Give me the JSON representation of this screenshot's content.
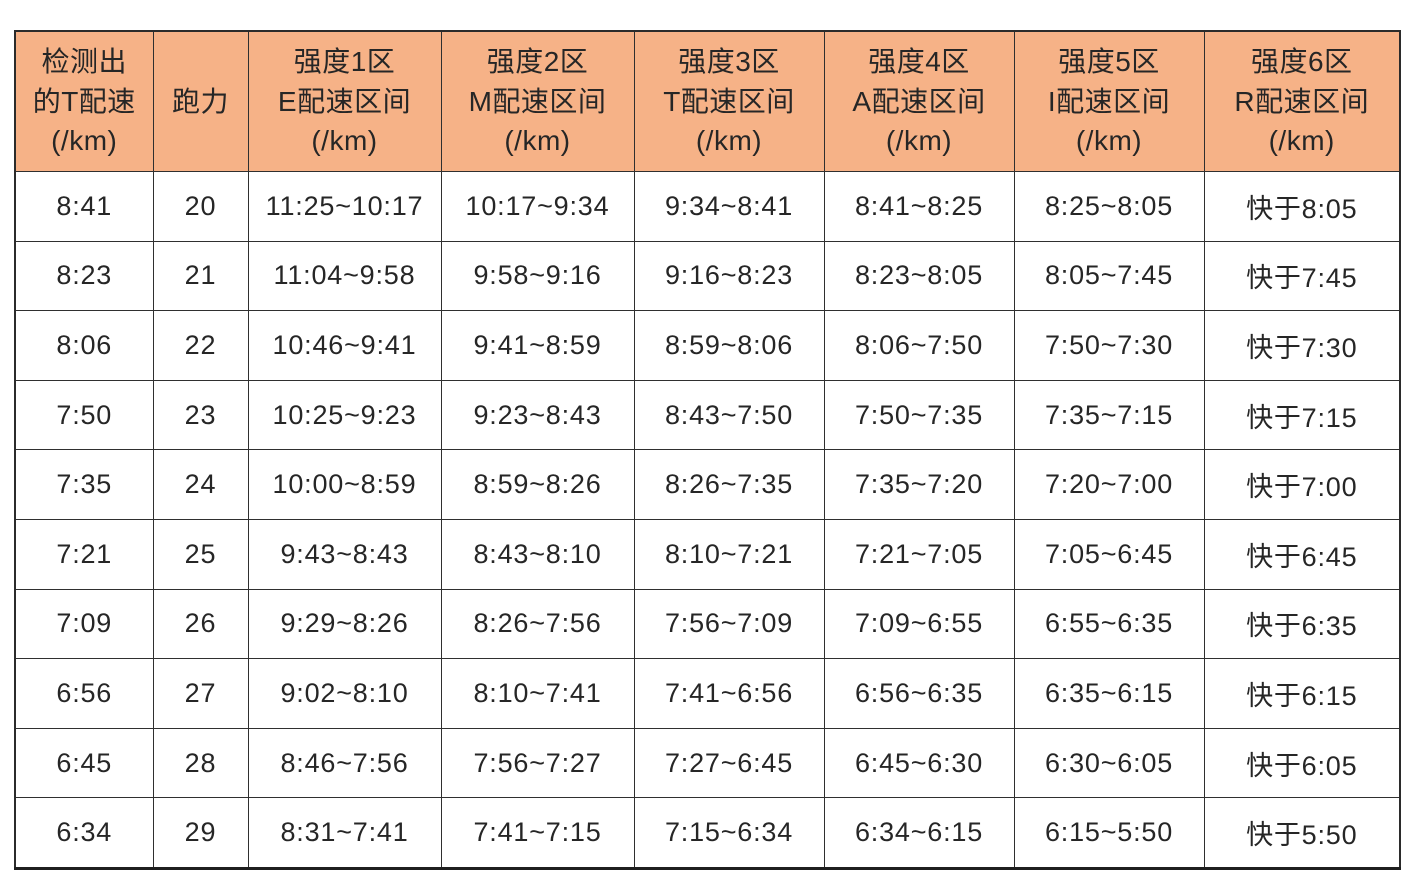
{
  "page": {
    "background_color": "#ffffff"
  },
  "table": {
    "header_bg_color": "#F6B287",
    "border_color": "#2f2f2f",
    "text_color": "#262626",
    "columns": [
      {
        "id": "detected-t-pace",
        "lines": [
          "检测出",
          "的T配速",
          "(/km)"
        ]
      },
      {
        "id": "run-ability",
        "lines": [
          "跑力"
        ]
      },
      {
        "id": "zone1-e-pace",
        "lines": [
          "强度1区",
          "E配速区间",
          "(/km)"
        ]
      },
      {
        "id": "zone2-m-pace",
        "lines": [
          "强度2区",
          "M配速区间",
          "(/km)"
        ]
      },
      {
        "id": "zone3-t-pace",
        "lines": [
          "强度3区",
          "T配速区间",
          "(/km)"
        ]
      },
      {
        "id": "zone4-a-pace",
        "lines": [
          "强度4区",
          "A配速区间",
          "(/km)"
        ]
      },
      {
        "id": "zone5-i-pace",
        "lines": [
          "强度5区",
          "I配速区间",
          "(/km)"
        ]
      },
      {
        "id": "zone6-r-pace",
        "lines": [
          "强度6区",
          "R配速区间",
          "(/km)"
        ]
      }
    ],
    "rows": [
      [
        "8:41",
        "20",
        "11:25~10:17",
        "10:17~9:34",
        "9:34~8:41",
        "8:41~8:25",
        "8:25~8:05",
        "快于8:05"
      ],
      [
        "8:23",
        "21",
        "11:04~9:58",
        "9:58~9:16",
        "9:16~8:23",
        "8:23~8:05",
        "8:05~7:45",
        "快于7:45"
      ],
      [
        "8:06",
        "22",
        "10:46~9:41",
        "9:41~8:59",
        "8:59~8:06",
        "8:06~7:50",
        "7:50~7:30",
        "快于7:30"
      ],
      [
        "7:50",
        "23",
        "10:25~9:23",
        "9:23~8:43",
        "8:43~7:50",
        "7:50~7:35",
        "7:35~7:15",
        "快于7:15"
      ],
      [
        "7:35",
        "24",
        "10:00~8:59",
        "8:59~8:26",
        "8:26~7:35",
        "7:35~7:20",
        "7:20~7:00",
        "快于7:00"
      ],
      [
        "7:21",
        "25",
        "9:43~8:43",
        "8:43~8:10",
        "8:10~7:21",
        "7:21~7:05",
        "7:05~6:45",
        "快于6:45"
      ],
      [
        "7:09",
        "26",
        "9:29~8:26",
        "8:26~7:56",
        "7:56~7:09",
        "7:09~6:55",
        "6:55~6:35",
        "快于6:35"
      ],
      [
        "6:56",
        "27",
        "9:02~8:10",
        "8:10~7:41",
        "7:41~6:56",
        "6:56~6:35",
        "6:35~6:15",
        "快于6:15"
      ],
      [
        "6:45",
        "28",
        "8:46~7:56",
        "7:56~7:27",
        "7:27~6:45",
        "6:45~6:30",
        "6:30~6:05",
        "快于6:05"
      ],
      [
        "6:34",
        "29",
        "8:31~7:41",
        "7:41~7:15",
        "7:15~6:34",
        "6:34~6:15",
        "6:15~5:50",
        "快于5:50"
      ]
    ]
  }
}
